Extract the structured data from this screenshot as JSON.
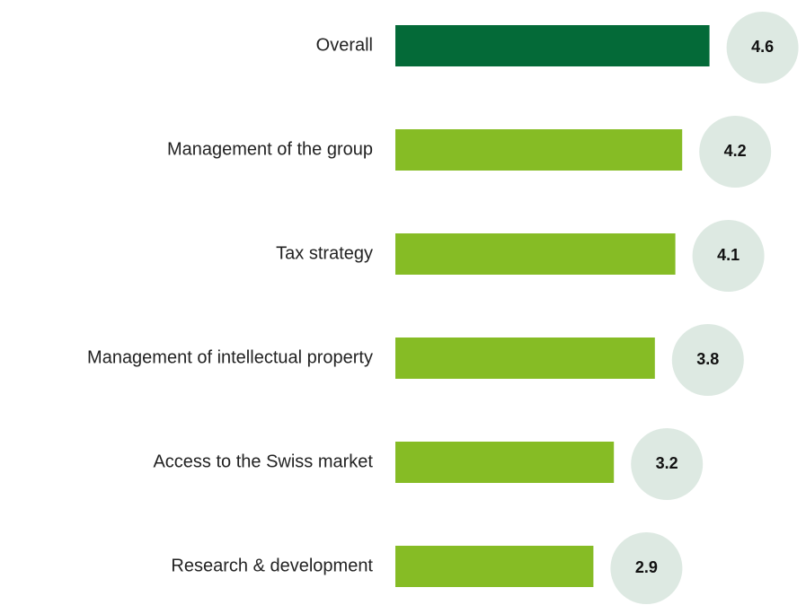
{
  "chart_data": {
    "type": "bar",
    "orientation": "horizontal",
    "categories": [
      "Overall",
      "Management of the group",
      "Tax strategy",
      "Management of intellectual property",
      "Access to the Swiss market",
      "Research & development"
    ],
    "values": [
      4.6,
      4.2,
      4.1,
      3.8,
      3.2,
      2.9
    ],
    "colors": [
      "#046a38",
      "#86bc25",
      "#86bc25",
      "#86bc25",
      "#86bc25",
      "#86bc25"
    ],
    "label_bubble_color": "#dde9e2"
  }
}
